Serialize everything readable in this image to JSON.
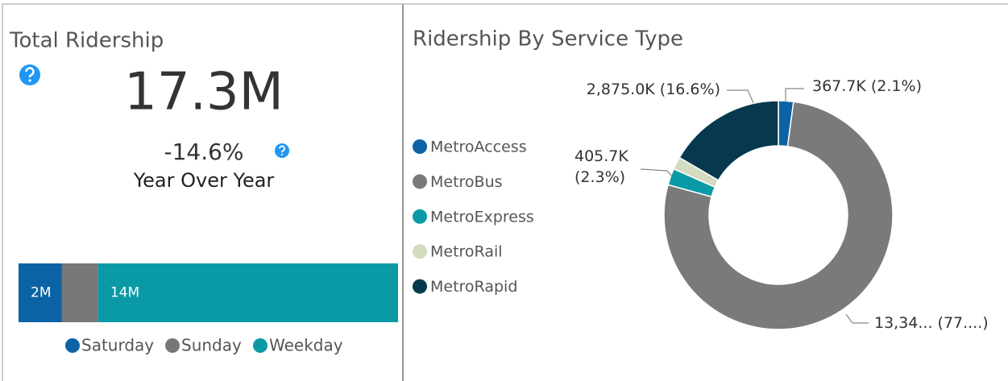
{
  "kpi": {
    "title": "Total Ridership",
    "value": "17.3M",
    "change": "-14.6%",
    "change_label": "Year Over Year"
  },
  "chart_data": [
    {
      "type": "stacked_bar",
      "orientation": "horizontal",
      "legend": "bottom",
      "series": [
        {
          "name": "Saturday",
          "color": "#0b63a5",
          "values": [
            1.98
          ],
          "value_labels": [
            "2M"
          ]
        },
        {
          "name": "Sunday",
          "color": "#777777",
          "values": [
            1.65
          ],
          "value_labels": [
            null
          ]
        },
        {
          "name": "Weekday",
          "color": "#0a9aa6",
          "values": [
            13.67
          ],
          "value_labels": [
            "14M"
          ]
        }
      ]
    },
    {
      "type": "donut",
      "title": "Ridership By Service Type",
      "legend": "left",
      "categories": [
        "MetroAccess",
        "MetroBus",
        "MetroExpress",
        "MetroRail",
        "MetroRapid"
      ],
      "values": [
        367.7,
        13345,
        405.7,
        306.6,
        2875.0
      ],
      "value_labels": [
        "367.7K (2.1%)",
        "13,34... (77....)",
        "405.7K (2.3%)",
        null,
        "2,875.0K (16.6%)"
      ],
      "colors": [
        "#0b63a5",
        "#7a7a7a",
        "#0a9aa6",
        "#d3dcc0",
        "#06394d"
      ]
    }
  ]
}
